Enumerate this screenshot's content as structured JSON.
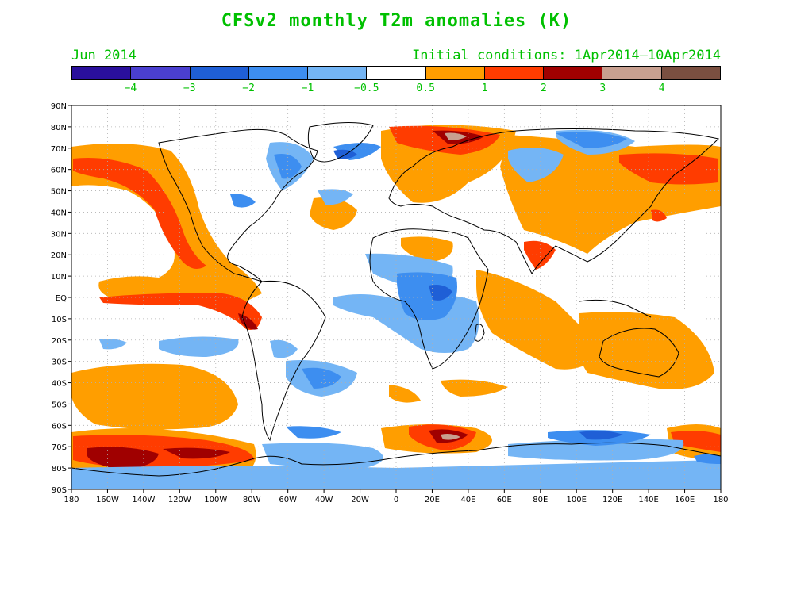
{
  "title": "CFSv2 monthly T2m anomalies (K)",
  "month": "Jun 2014",
  "initial_conditions": "Initial conditions: 1Apr2014–10Apr2014",
  "colors": {
    "text_green": "#00c000",
    "land_outline": "#000000",
    "grid": "#b0b0b0"
  },
  "colorbar": {
    "segments": [
      {
        "color": "#2a0f9c"
      },
      {
        "color": "#4a3fd0"
      },
      {
        "color": "#1f5fd6"
      },
      {
        "color": "#3d8ef0"
      },
      {
        "color": "#74b5f5"
      },
      {
        "color": "#ffffff"
      },
      {
        "color": "#ff9e00"
      },
      {
        "color": "#ff3c00"
      },
      {
        "color": "#a00000"
      },
      {
        "color": "#c8a090"
      },
      {
        "color": "#7a4f40"
      }
    ],
    "labels": [
      "−4",
      "−3",
      "−2",
      "−1",
      "−0.5",
      "0.5",
      "1",
      "2",
      "3",
      "4"
    ]
  },
  "axes": {
    "lat_labels": [
      "90N",
      "80N",
      "70N",
      "60N",
      "50N",
      "40N",
      "30N",
      "20N",
      "10N",
      "EQ",
      "10S",
      "20S",
      "30S",
      "40S",
      "50S",
      "60S",
      "70S",
      "80S",
      "90S"
    ],
    "lon_labels": [
      "180",
      "160W",
      "140W",
      "120W",
      "100W",
      "80W",
      "60W",
      "40W",
      "20W",
      "0",
      "20E",
      "40E",
      "60E",
      "80E",
      "100E",
      "120E",
      "140E",
      "160E",
      "180"
    ]
  },
  "map_data": {
    "type": "heatmap",
    "lon_range": [
      -180,
      180
    ],
    "lat_range": [
      -90,
      90
    ],
    "anomalies": [
      {
        "region": "NE Pacific / N America west coast",
        "level": "1 to 2 K"
      },
      {
        "region": "Equatorial E Pacific / Peru coast",
        "level": "2 to 3 K"
      },
      {
        "region": "Southern Ocean S Pacific (70S)",
        "level": "2 to 3 K"
      },
      {
        "region": "Barents Sea / Svalbard",
        "level": "3 to 4 K"
      },
      {
        "region": "Southern Ocean S of Africa (65S, 25E)",
        "level": "3 to 4 K"
      },
      {
        "region": "India",
        "level": "1 to 2 K"
      },
      {
        "region": "Central Africa / Sahel",
        "level": "-1 to -2 K"
      },
      {
        "region": "Canadian Arctic / Greenland",
        "level": "-1 to -2 K"
      },
      {
        "region": "Siberia (70N)",
        "level": "-1 to -2 K"
      },
      {
        "region": "Antarctica",
        "level": "-0.5 to -1 K"
      }
    ]
  }
}
